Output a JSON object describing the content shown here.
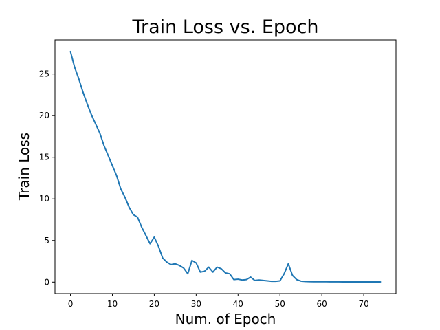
{
  "chart_data": {
    "type": "line",
    "title": "Train Loss vs. Epoch",
    "xlabel": "Num. of Epoch",
    "ylabel": "Train Loss",
    "xlim": [
      -3.7,
      77.7
    ],
    "ylim": [
      -1.38,
      29.1
    ],
    "xticks": [
      0,
      10,
      20,
      30,
      40,
      50,
      60,
      70
    ],
    "yticks": [
      0,
      5,
      10,
      15,
      20,
      25
    ],
    "grid": false,
    "legend": "none",
    "series": [
      {
        "color": "#1f77b4",
        "x": [
          0,
          1,
          2,
          3,
          4,
          5,
          6,
          7,
          8,
          9,
          10,
          11,
          12,
          13,
          14,
          15,
          16,
          17,
          18,
          19,
          20,
          21,
          22,
          23,
          24,
          25,
          26,
          27,
          28,
          29,
          30,
          31,
          32,
          33,
          34,
          35,
          36,
          37,
          38,
          39,
          40,
          41,
          42,
          43,
          44,
          45,
          46,
          47,
          48,
          49,
          50,
          51,
          52,
          53,
          54,
          55,
          56,
          57,
          58,
          59,
          60,
          61,
          62,
          63,
          64,
          65,
          66,
          67,
          68,
          69,
          70,
          71,
          72,
          73,
          74
        ],
        "y": [
          27.7,
          25.8,
          24.4,
          22.8,
          21.4,
          20.1,
          19.0,
          17.9,
          16.4,
          15.2,
          14.0,
          12.8,
          11.2,
          10.2,
          9.0,
          8.1,
          7.8,
          6.6,
          5.6,
          4.6,
          5.4,
          4.3,
          2.9,
          2.4,
          2.1,
          2.2,
          2.0,
          1.7,
          1.0,
          2.6,
          2.3,
          1.2,
          1.3,
          1.8,
          1.2,
          1.8,
          1.6,
          1.1,
          1.0,
          0.3,
          0.35,
          0.25,
          0.3,
          0.6,
          0.2,
          0.25,
          0.2,
          0.15,
          0.1,
          0.1,
          0.15,
          1.0,
          2.2,
          0.8,
          0.3,
          0.12,
          0.08,
          0.06,
          0.05,
          0.05,
          0.04,
          0.04,
          0.03,
          0.03,
          0.03,
          0.02,
          0.02,
          0.02,
          0.02,
          0.02,
          0.02,
          0.02,
          0.02,
          0.02,
          0.02
        ]
      }
    ]
  }
}
